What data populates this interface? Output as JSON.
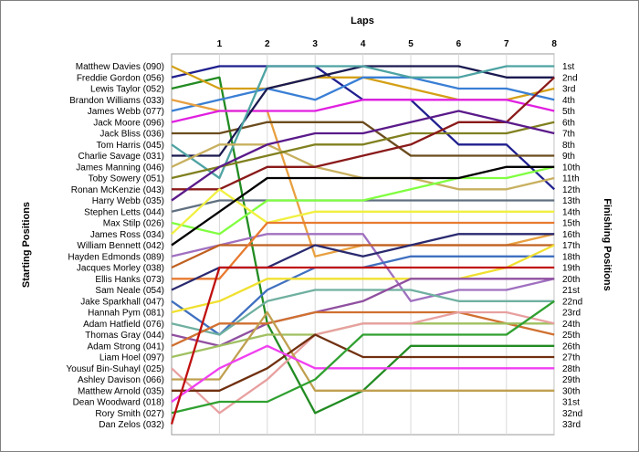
{
  "chart_data": {
    "type": "line",
    "title": "Laps",
    "ylabel_left": "Starting Positions",
    "ylabel_right": "Finishing Positions",
    "laps": [
      1,
      2,
      3,
      4,
      5,
      6,
      7,
      8
    ],
    "starting_positions": [
      "Matthew Davies (090)",
      "Freddie Gordon (056)",
      "Lewis Taylor (052)",
      "Brandon Williams (033)",
      "James Webb (077)",
      "Jack Moore (096)",
      "Jack Bliss (036)",
      "Tom Harris (045)",
      "Charlie Savage (031)",
      "James Manning (046)",
      "Toby Sowery (051)",
      "Ronan McKenzie (043)",
      "Harry Webb (035)",
      "Stephen Letts (044)",
      "Max Stilp (026)",
      "James Ross (034)",
      "William Bennett (042)",
      "Hayden Edmonds (089)",
      "Jacques Morley (038)",
      "Ellis Hanks (073)",
      "Sam Neale (054)",
      "Jake Sparkhall (047)",
      "Hannah Pym (081)",
      "Adam Hatfield (076)",
      "Thomas Gray (044)",
      "Adam Strong (041)",
      "Liam Hoel (097)",
      "Yousuf Bin-Suhayl (025)",
      "Ashley Davison (066)",
      "Matthew Arnold (035)",
      "Dean Woodward (018)",
      "Rory Smith (027)",
      "Dan Zelos (032)"
    ],
    "finishing_positions": [
      "1st",
      "2nd",
      "3rd",
      "4th",
      "5th",
      "6th",
      "7th",
      "8th",
      "9th",
      "10th",
      "11th",
      "12th",
      "13th",
      "14th",
      "15th",
      "16th",
      "17th",
      "18th",
      "19th",
      "20th",
      "21st",
      "22nd",
      "23rd",
      "24th",
      "25th",
      "26th",
      "27th",
      "28th",
      "29th",
      "30th",
      "31st",
      "32nd",
      "33rd"
    ],
    "series": [
      {
        "start": 2,
        "color": "#1f1f8f",
        "positions": [
          1,
          1,
          1,
          4,
          4,
          8,
          8,
          12
        ]
      },
      {
        "start": 3,
        "color": "#228b22",
        "positions": [
          2,
          24,
          32,
          30,
          26,
          26,
          26,
          26
        ]
      },
      {
        "start": 1,
        "color": "#d4a017",
        "positions": [
          3,
          3,
          2,
          2,
          3,
          4,
          4,
          3
        ]
      },
      {
        "start": 5,
        "color": "#3a7fd5",
        "positions": [
          4,
          3,
          4,
          2,
          2,
          3,
          3,
          4
        ]
      },
      {
        "start": 4,
        "color": "#e8a040",
        "positions": [
          5,
          5,
          18,
          17,
          17,
          17,
          17,
          16
        ]
      },
      {
        "start": 6,
        "color": "#e020e0",
        "positions": [
          5,
          5,
          5,
          4,
          4,
          4,
          4,
          5
        ]
      },
      {
        "start": 7,
        "color": "#6b4c1e",
        "positions": [
          7,
          6,
          6,
          6,
          9,
          9,
          9,
          9
        ]
      },
      {
        "start": 9,
        "color": "#1a1a50",
        "positions": [
          9,
          3,
          2,
          1,
          1,
          1,
          2,
          2
        ]
      },
      {
        "start": 8,
        "color": "#4fa3a3",
        "positions": [
          11,
          1,
          1,
          1,
          2,
          2,
          1,
          1
        ]
      },
      {
        "start": 10,
        "color": "#c8b060",
        "positions": [
          8,
          8,
          10,
          11,
          11,
          12,
          12,
          11
        ]
      },
      {
        "start": 11,
        "color": "#808020",
        "positions": [
          10,
          9,
          8,
          8,
          7,
          7,
          7,
          6
        ]
      },
      {
        "start": 12,
        "color": "#8a1a1a",
        "positions": [
          12,
          10,
          10,
          9,
          8,
          6,
          6,
          2
        ]
      },
      {
        "start": 13,
        "color": "#5a1a8a",
        "positions": [
          10,
          8,
          7,
          7,
          6,
          5,
          6,
          7
        ]
      },
      {
        "start": 14,
        "color": "#607080",
        "positions": [
          13,
          13,
          13,
          13,
          13,
          13,
          13,
          13
        ]
      },
      {
        "start": 15,
        "color": "#80ff40",
        "positions": [
          16,
          13,
          13,
          13,
          12,
          11,
          11,
          10
        ]
      },
      {
        "start": 16,
        "color": "#f0f040",
        "positions": [
          12,
          15,
          14,
          14,
          14,
          14,
          14,
          14
        ]
      },
      {
        "start": 17,
        "color": "#000000",
        "positions": [
          14,
          11,
          11,
          11,
          11,
          11,
          10,
          10
        ]
      },
      {
        "start": 18,
        "color": "#a070c0",
        "positions": [
          17,
          16,
          16,
          16,
          22,
          21,
          21,
          20
        ]
      },
      {
        "start": 19,
        "color": "#c06020",
        "positions": [
          17,
          17,
          17,
          17,
          17,
          17,
          17,
          17
        ]
      },
      {
        "start": 20,
        "color": "#e87a30",
        "positions": [
          20,
          15,
          15,
          15,
          15,
          15,
          15,
          15
        ]
      },
      {
        "start": 21,
        "color": "#2a2a70",
        "positions": [
          19,
          19,
          17,
          18,
          17,
          16,
          16,
          16
        ]
      },
      {
        "start": 22,
        "color": "#4070c0",
        "positions": [
          25,
          21,
          19,
          19,
          18,
          18,
          18,
          18
        ]
      },
      {
        "start": 23,
        "color": "#f0e030",
        "positions": [
          22,
          20,
          20,
          20,
          20,
          20,
          19,
          17
        ]
      },
      {
        "start": 24,
        "color": "#70b0a0",
        "positions": [
          25,
          22,
          21,
          21,
          21,
          22,
          22,
          22
        ]
      },
      {
        "start": 25,
        "color": "#9050a0",
        "positions": [
          26,
          24,
          23,
          22,
          20,
          20,
          20,
          20
        ]
      },
      {
        "start": 26,
        "color": "#d07030",
        "positions": [
          24,
          24,
          23,
          23,
          23,
          23,
          24,
          25
        ]
      },
      {
        "start": 27,
        "color": "#a0c060",
        "positions": [
          26,
          25,
          25,
          24,
          24,
          24,
          24,
          24
        ]
      },
      {
        "start": 28,
        "color": "#e8a0a0",
        "positions": [
          32,
          29,
          25,
          24,
          24,
          23,
          23,
          24
        ]
      },
      {
        "start": 29,
        "color": "#c0a050",
        "positions": [
          29,
          23,
          30,
          30,
          30,
          30,
          30,
          30
        ]
      },
      {
        "start": 30,
        "color": "#703010",
        "positions": [
          30,
          28,
          25,
          27,
          27,
          27,
          27,
          27
        ]
      },
      {
        "start": 31,
        "color": "#f040f0",
        "positions": [
          28,
          26,
          28,
          28,
          28,
          28,
          28,
          28
        ]
      },
      {
        "start": 32,
        "color": "#30a030",
        "positions": [
          31,
          31,
          29,
          25,
          25,
          25,
          25,
          22
        ]
      },
      {
        "start": 33,
        "color": "#c01010",
        "positions": [
          19,
          19,
          19,
          19,
          19,
          19,
          19,
          19
        ]
      }
    ]
  }
}
